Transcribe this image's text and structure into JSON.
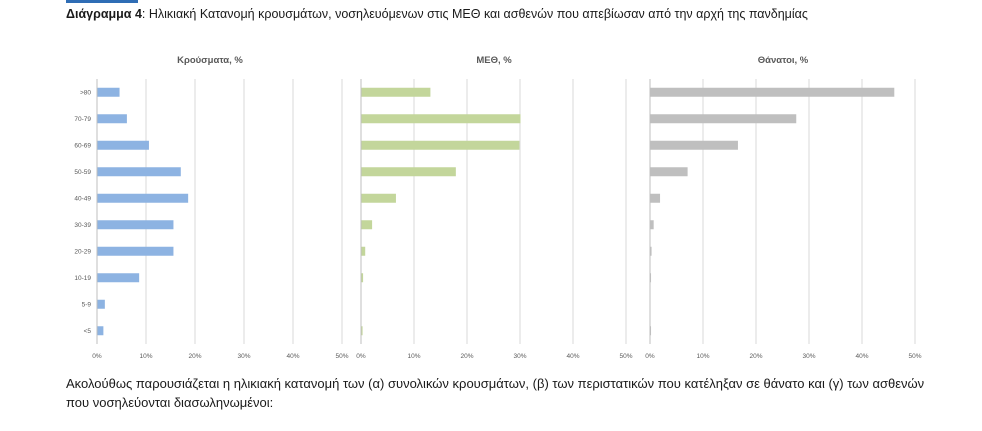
{
  "caption": {
    "label": "Διάγραμμα 4",
    "text": ": Ηλικιακή Κατανομή κρουσμάτων, νοσηλευόμενων στις ΜΕΘ και ασθενών που απεβίωσαν από την αρχή της πανδημίας"
  },
  "chart_data": [
    {
      "type": "bar",
      "orientation": "horizontal",
      "title": "Κρούσματα, %",
      "categories": [
        ">80",
        "70-79",
        "60-69",
        "50-59",
        "40-49",
        "30-39",
        "20-29",
        "10-19",
        "5-9",
        "<5"
      ],
      "values": [
        4.5,
        6.0,
        10.5,
        17.0,
        18.5,
        15.5,
        15.5,
        8.5,
        1.5,
        1.2
      ],
      "xlim": [
        0,
        50
      ],
      "xticks": [
        "0%",
        "10%",
        "20%",
        "30%",
        "40%",
        "50%"
      ],
      "grid": true,
      "color": "#8db3e2"
    },
    {
      "type": "bar",
      "orientation": "horizontal",
      "title": "ΜΕΘ, %",
      "categories": [
        ">80",
        "70-79",
        "60-69",
        "50-59",
        "40-49",
        "30-39",
        "20-29",
        "10-19",
        "5-9",
        "<5"
      ],
      "values": [
        13.0,
        30.0,
        29.8,
        17.8,
        6.5,
        2.0,
        0.7,
        0.3,
        0,
        0.2
      ],
      "xlim": [
        0,
        50
      ],
      "xticks": [
        "0%",
        "10%",
        "20%",
        "30%",
        "40%",
        "50%"
      ],
      "grid": true,
      "color": "#c3d69b"
    },
    {
      "type": "bar",
      "orientation": "horizontal",
      "title": "Θάνατοι, %",
      "categories": [
        ">80",
        "70-79",
        "60-69",
        "50-59",
        "40-49",
        "30-39",
        "20-29",
        "10-19",
        "5-9",
        "<5"
      ],
      "values": [
        46.0,
        27.5,
        16.5,
        7.0,
        1.8,
        0.6,
        0.2,
        0.1,
        0,
        0.1
      ],
      "xlim": [
        0,
        50
      ],
      "xticks": [
        "0%",
        "10%",
        "20%",
        "30%",
        "40%",
        "50%"
      ],
      "grid": true,
      "color": "#bfbfbf"
    }
  ],
  "body_text": "Ακολούθως παρουσιάζεται η ηλικιακή κατανομή των (α) συνολικών κρουσμάτων, (β) των περιστατικών που κατέληξαν σε θάνατο και (γ) των ασθενών που νοσηλεύονται διασωληνωμένοι:"
}
